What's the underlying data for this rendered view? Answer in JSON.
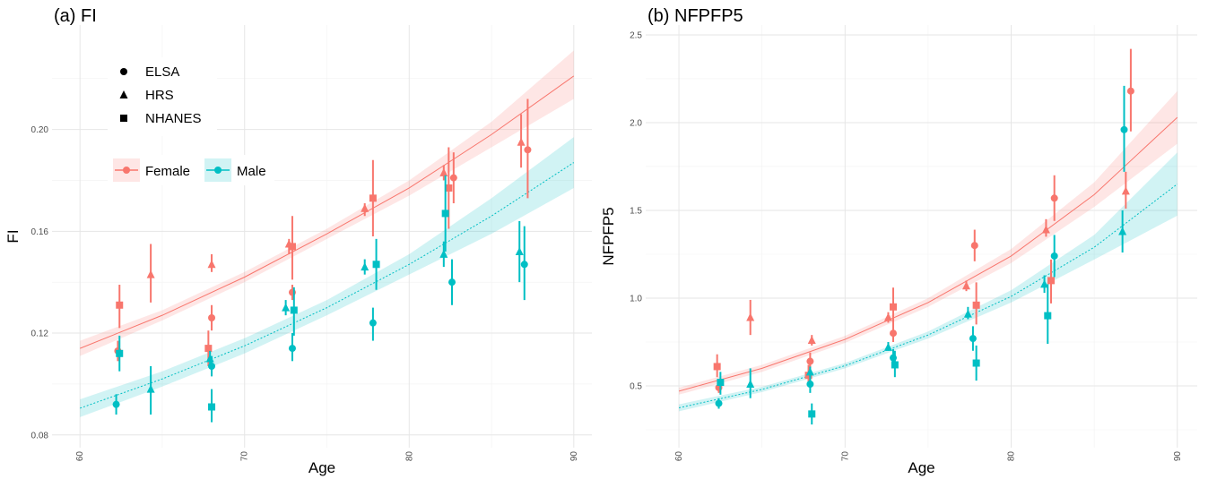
{
  "chart_data": [
    {
      "type": "scatter",
      "title": "(a) FI",
      "x_label": "Age",
      "y_label": "FI",
      "xlim": [
        58.3,
        91.1
      ],
      "ylim": [
        0.075,
        0.241
      ],
      "xticks": [
        60,
        70,
        80,
        90
      ],
      "xminorticks": [
        65,
        75,
        85
      ],
      "yticks": [
        0.08,
        0.12,
        0.16,
        {
          "value": 0.2,
          "label": "0.20"
        }
      ],
      "yminorticks": [
        0.1,
        0.14,
        0.18,
        0.22
      ],
      "grid": true,
      "legend": true,
      "studies": [
        {
          "name": "ELSA",
          "shape": "circle"
        },
        {
          "name": "HRS",
          "shape": "triangle"
        },
        {
          "name": "NHANES",
          "shape": "square"
        }
      ],
      "fit_x": [
        60,
        65,
        70,
        75,
        80,
        85,
        90
      ],
      "series": [
        {
          "name": "Female",
          "color": "#F8766D",
          "linestyle": "solid",
          "fit": [
            0.114,
            0.127,
            0.142,
            0.159,
            0.177,
            0.198,
            0.221
          ],
          "fit_lower": [
            0.111,
            0.125,
            0.14,
            0.157,
            0.174,
            0.193,
            0.212
          ],
          "fit_upper": [
            0.117,
            0.129,
            0.144,
            0.161,
            0.18,
            0.203,
            0.231
          ],
          "x": [
            62.4,
            62.3,
            64.3,
            67.8,
            68.0,
            68.0,
            72.7,
            72.9,
            72.9,
            77.3,
            77.8,
            82.1,
            82.4,
            82.7,
            86.8,
            87.2
          ],
          "study": [
            "NHANES",
            "ELSA",
            "HRS",
            "NHANES",
            "ELSA",
            "HRS",
            "HRS",
            "NHANES",
            "ELSA",
            "HRS",
            "NHANES",
            "HRS",
            "NHANES",
            "ELSA",
            "HRS",
            "ELSA"
          ],
          "values": [
            0.131,
            0.113,
            0.143,
            0.114,
            0.126,
            0.147,
            0.155,
            0.154,
            0.136,
            0.169,
            0.173,
            0.183,
            0.177,
            0.181,
            0.195,
            0.192
          ],
          "ci_low": [
            0.122,
            0.109,
            0.132,
            0.107,
            0.121,
            0.144,
            0.151,
            0.141,
            0.133,
            0.166,
            0.158,
            0.18,
            0.161,
            0.171,
            0.185,
            0.173
          ],
          "ci_high": [
            0.139,
            0.117,
            0.155,
            0.121,
            0.131,
            0.151,
            0.157,
            0.166,
            0.139,
            0.171,
            0.188,
            0.186,
            0.193,
            0.191,
            0.206,
            0.212
          ]
        },
        {
          "name": "Male",
          "color": "#00BFC4",
          "linestyle": "dotted",
          "fit": [
            0.0905,
            0.102,
            0.115,
            0.13,
            0.147,
            0.166,
            0.187
          ],
          "fit_lower": [
            0.087,
            0.099,
            0.112,
            0.127,
            0.143,
            0.159,
            0.177
          ],
          "fit_upper": [
            0.094,
            0.105,
            0.118,
            0.133,
            0.151,
            0.173,
            0.197
          ],
          "x": [
            62.2,
            62.4,
            64.3,
            67.9,
            68.0,
            68.0,
            72.5,
            72.9,
            73.0,
            77.3,
            77.8,
            78.0,
            82.1,
            82.2,
            82.6,
            86.7,
            87.0
          ],
          "study": [
            "ELSA",
            "NHANES",
            "HRS",
            "HRS",
            "ELSA",
            "NHANES",
            "HRS",
            "ELSA",
            "NHANES",
            "HRS",
            "ELSA",
            "NHANES",
            "HRS",
            "NHANES",
            "ELSA",
            "HRS",
            "ELSA"
          ],
          "values": [
            0.092,
            0.112,
            0.098,
            0.11,
            0.107,
            0.091,
            0.13,
            0.114,
            0.129,
            0.146,
            0.124,
            0.147,
            0.151,
            0.167,
            0.14,
            0.152,
            0.147
          ],
          "ci_low": [
            0.088,
            0.105,
            0.088,
            0.107,
            0.103,
            0.085,
            0.127,
            0.109,
            0.119,
            0.143,
            0.117,
            0.137,
            0.146,
            0.152,
            0.131,
            0.14,
            0.133
          ],
          "ci_high": [
            0.096,
            0.119,
            0.107,
            0.113,
            0.111,
            0.098,
            0.133,
            0.12,
            0.138,
            0.149,
            0.13,
            0.157,
            0.156,
            0.182,
            0.149,
            0.164,
            0.162
          ]
        }
      ]
    },
    {
      "type": "scatter",
      "title": "(b) NFPFP5",
      "x_label": "Age",
      "y_label": "NFPFP5",
      "xlim": [
        58.0,
        91.2
      ],
      "ylim": [
        0.148,
        2.556
      ],
      "xticks": [
        60,
        70,
        80,
        90
      ],
      "xminorticks": [
        65,
        75,
        85
      ],
      "yticks": [
        0.5,
        {
          "value": 1,
          "label": "1.0"
        },
        1.5,
        {
          "value": 2,
          "label": "2.0"
        },
        2.5
      ],
      "yminorticks": [
        0.25,
        0.75,
        1.25,
        1.75,
        2.25
      ],
      "grid": true,
      "legend": false,
      "studies": [
        {
          "name": "ELSA",
          "shape": "circle"
        },
        {
          "name": "HRS",
          "shape": "triangle"
        },
        {
          "name": "NHANES",
          "shape": "square"
        }
      ],
      "fit_x": [
        60,
        65,
        70,
        75,
        80,
        85,
        90
      ],
      "series": [
        {
          "name": "Female",
          "color": "#F8766D",
          "linestyle": "solid",
          "fit": [
            0.47,
            0.6,
            0.765,
            0.975,
            1.24,
            1.59,
            2.03
          ],
          "fit_lower": [
            0.45,
            0.58,
            0.745,
            0.95,
            1.2,
            1.52,
            1.88
          ],
          "fit_upper": [
            0.49,
            0.62,
            0.785,
            1.0,
            1.28,
            1.66,
            2.18
          ],
          "x": [
            62.3,
            62.4,
            64.3,
            67.8,
            67.9,
            68.0,
            72.6,
            72.9,
            72.9,
            77.3,
            77.8,
            77.9,
            82.1,
            82.4,
            82.6,
            86.9,
            87.2
          ],
          "study": [
            "NHANES",
            "ELSA",
            "HRS",
            "NHANES",
            "ELSA",
            "HRS",
            "HRS",
            "NHANES",
            "ELSA",
            "HRS",
            "ELSA",
            "NHANES",
            "HRS",
            "NHANES",
            "ELSA",
            "HRS",
            "ELSA"
          ],
          "values": [
            0.61,
            0.49,
            0.89,
            0.56,
            0.64,
            0.76,
            0.89,
            0.95,
            0.8,
            1.07,
            1.3,
            0.96,
            1.39,
            1.1,
            1.57,
            1.61,
            2.18
          ],
          "ci_low": [
            0.55,
            0.46,
            0.79,
            0.51,
            0.6,
            0.73,
            0.86,
            0.85,
            0.75,
            1.04,
            1.21,
            0.85,
            1.35,
            0.97,
            1.44,
            1.51,
            1.95
          ],
          "ci_high": [
            0.68,
            0.53,
            0.99,
            0.62,
            0.69,
            0.79,
            0.92,
            1.06,
            0.86,
            1.1,
            1.39,
            1.09,
            1.45,
            1.22,
            1.7,
            1.72,
            2.42
          ]
        },
        {
          "name": "Male",
          "color": "#00BFC4",
          "linestyle": "dotted",
          "fit": [
            0.375,
            0.48,
            0.615,
            0.79,
            1.01,
            1.29,
            1.65
          ],
          "fit_lower": [
            0.355,
            0.465,
            0.6,
            0.77,
            0.975,
            1.22,
            1.47
          ],
          "fit_upper": [
            0.395,
            0.495,
            0.63,
            0.81,
            1.045,
            1.36,
            1.83
          ],
          "x": [
            62.4,
            62.5,
            64.3,
            67.9,
            68.0,
            67.9,
            72.6,
            72.9,
            73.0,
            77.4,
            77.7,
            77.9,
            82.0,
            82.2,
            82.6,
            86.7,
            86.8
          ],
          "study": [
            "ELSA",
            "NHANES",
            "HRS",
            "ELSA",
            "NHANES",
            "HRS",
            "HRS",
            "ELSA",
            "NHANES",
            "HRS",
            "ELSA",
            "NHANES",
            "HRS",
            "NHANES",
            "ELSA",
            "HRS",
            "ELSA"
          ],
          "values": [
            0.4,
            0.52,
            0.51,
            0.51,
            0.34,
            0.58,
            0.72,
            0.66,
            0.62,
            0.91,
            0.77,
            0.63,
            1.08,
            0.9,
            1.24,
            1.38,
            1.96
          ],
          "ci_low": [
            0.37,
            0.45,
            0.43,
            0.46,
            0.28,
            0.55,
            0.7,
            0.61,
            0.55,
            0.88,
            0.7,
            0.53,
            1.03,
            0.74,
            1.12,
            1.26,
            1.72
          ],
          "ci_high": [
            0.43,
            0.58,
            0.6,
            0.56,
            0.4,
            0.61,
            0.75,
            0.71,
            0.7,
            0.95,
            0.84,
            0.73,
            1.13,
            1.08,
            1.36,
            1.5,
            2.21
          ]
        }
      ]
    }
  ]
}
